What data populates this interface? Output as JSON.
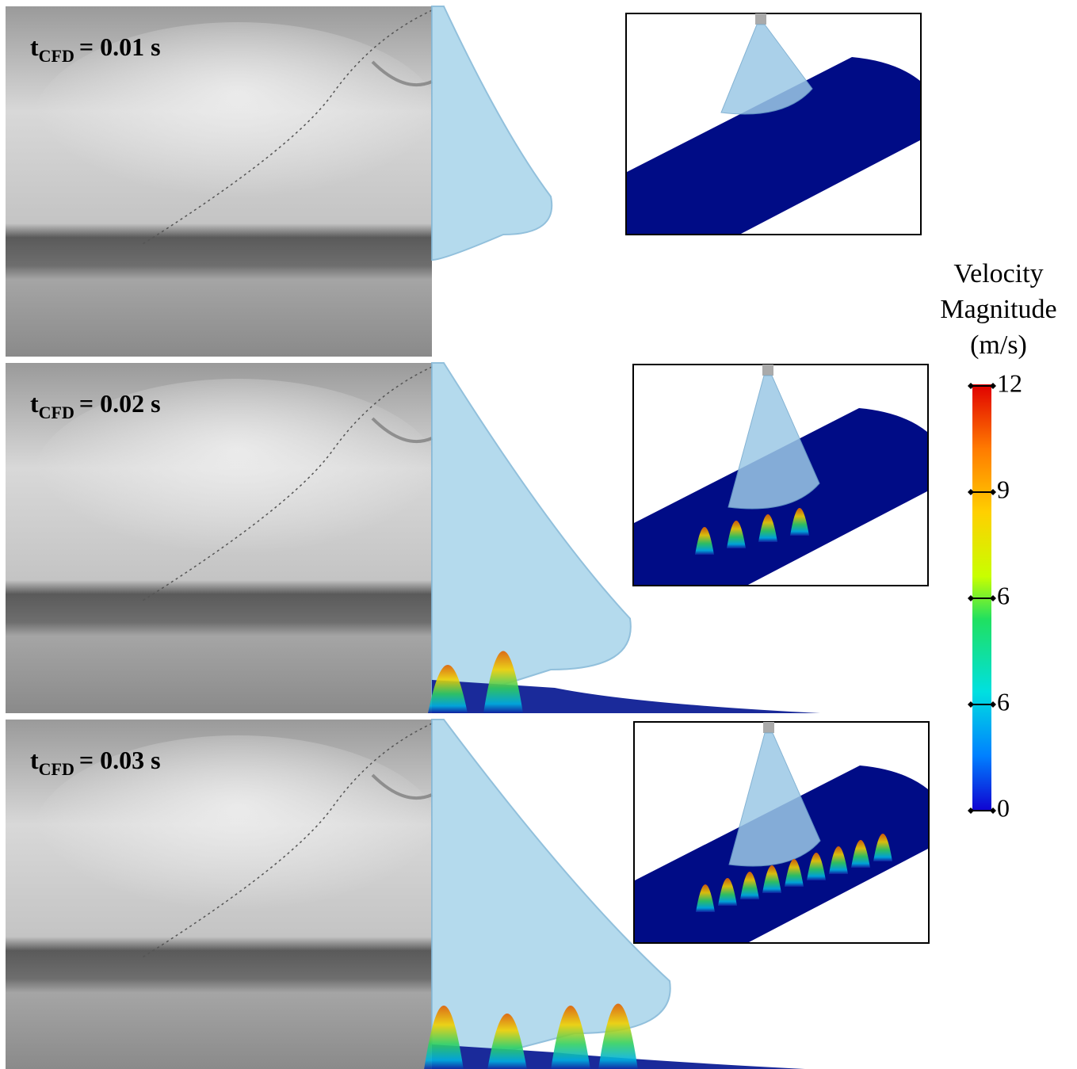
{
  "panels": [
    {
      "time_label": {
        "symbol": "t",
        "subscript": "CFD",
        "value": "= 0.01 s"
      }
    },
    {
      "time_label": {
        "symbol": "t",
        "subscript": "CFD",
        "value": "= 0.02 s"
      }
    },
    {
      "time_label": {
        "symbol": "t",
        "subscript": "CFD",
        "value": "= 0.03 s"
      }
    }
  ],
  "colorbar": {
    "title": [
      "Velocity",
      "Magnitude",
      "(m/s)"
    ],
    "tick_labels": [
      "12",
      "9",
      "6",
      "6",
      "0"
    ]
  }
}
